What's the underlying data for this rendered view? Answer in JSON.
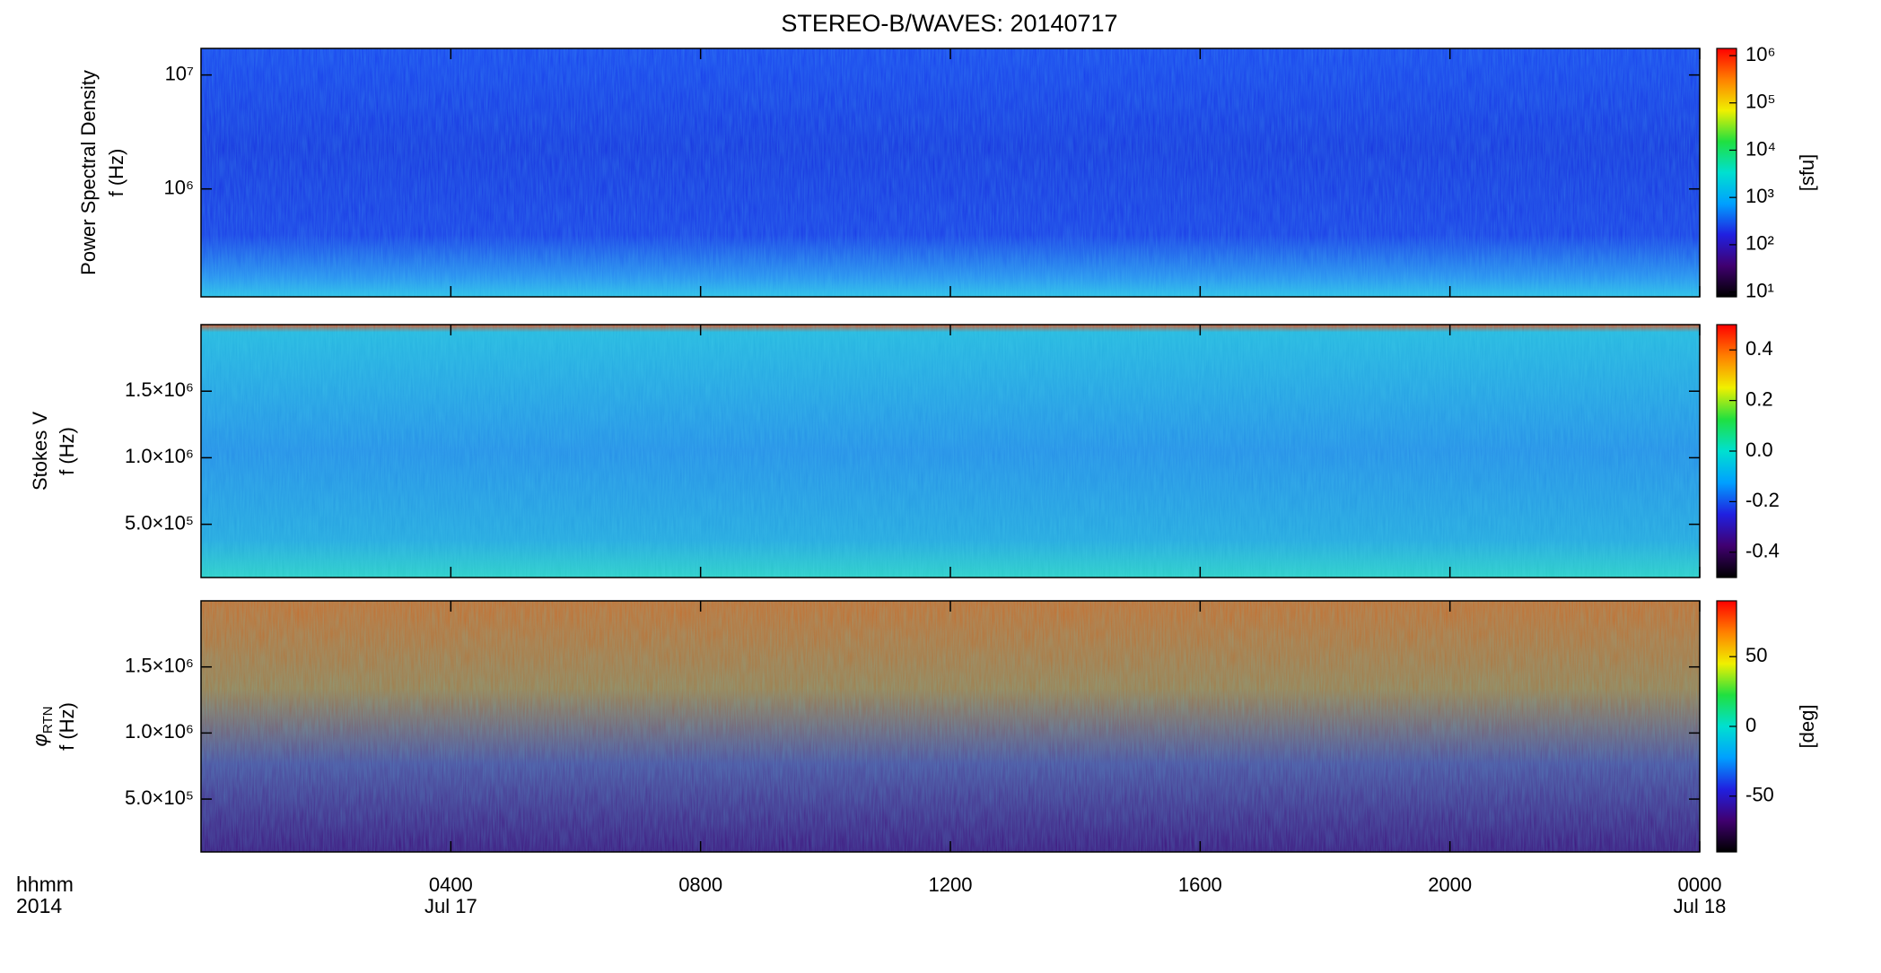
{
  "chart_data": {
    "type": "spectrogram",
    "title": "STEREO-B/WAVES: 20140717",
    "x_label": "hhmm",
    "x_sublabel": "2014",
    "xlim": [
      0,
      24
    ],
    "xticks": [
      {
        "value": 4,
        "label": "0400"
      },
      {
        "value": 8,
        "label": "0800"
      },
      {
        "value": 12,
        "label": "1200"
      },
      {
        "value": 16,
        "label": "1600"
      },
      {
        "value": 20,
        "label": "2000"
      },
      {
        "value": 24,
        "label": "0000"
      }
    ],
    "x_date_labels": [
      {
        "value": 4,
        "label": "Jul 17"
      },
      {
        "value": 24,
        "label": "Jul 18"
      }
    ],
    "colormap": [
      "#000000",
      "#400070",
      "#2020e0",
      "#00a0ff",
      "#00e0d0",
      "#20e040",
      "#f0f000",
      "#ff8000",
      "#ff0000"
    ],
    "panels": [
      {
        "ylabel": "Power Spectral Density",
        "yunit": "f (Hz)",
        "log": true,
        "ylim": [
          113000,
          17100000
        ],
        "yticks": [
          {
            "value": 10000000,
            "label": "10⁷"
          },
          {
            "value": 1000000,
            "label": "10⁶"
          }
        ],
        "colorbar": {
          "label": "[sfu]",
          "log": true,
          "clim": [
            7.9,
            1420000
          ],
          "ticks": [
            {
              "value": 1000000,
              "label": "10⁶"
            },
            {
              "value": 100000,
              "label": "10⁵"
            },
            {
              "value": 10000,
              "label": "10⁴"
            },
            {
              "value": 1000,
              "label": "10³"
            },
            {
              "value": 100,
              "label": "10²"
            },
            {
              "value": 10,
              "label": "10¹"
            }
          ]
        }
      },
      {
        "ylabel": "Stokes V",
        "yunit": "f (Hz)",
        "log": false,
        "ylim": [
          100000,
          2000000
        ],
        "yticks": [
          {
            "value": 1500000,
            "label": "1.5×10⁶"
          },
          {
            "value": 1000000,
            "label": "1.0×10⁶"
          },
          {
            "value": 500000,
            "label": "5.0×10⁵"
          }
        ],
        "colorbar": {
          "log": false,
          "clim": [
            -0.5,
            0.5
          ],
          "ticks": [
            0.4,
            0.2,
            {
              "value": 0,
              "label": "0.0"
            },
            -0.2,
            -0.4
          ]
        }
      },
      {
        "ylabel": "φ",
        "ylabel_sub": "RTN",
        "yunit": "f (Hz)",
        "log": false,
        "ylim": [
          100000,
          2000000
        ],
        "yticks": [
          {
            "value": 1500000,
            "label": "1.5×10⁶"
          },
          {
            "value": 1000000,
            "label": "1.0×10⁶"
          },
          {
            "value": 500000,
            "label": "5.0×10⁵"
          }
        ],
        "colorbar": {
          "label": "[deg]",
          "log": false,
          "clim": [
            -90,
            90
          ],
          "ticks": [
            50,
            0,
            -50
          ]
        }
      }
    ]
  }
}
